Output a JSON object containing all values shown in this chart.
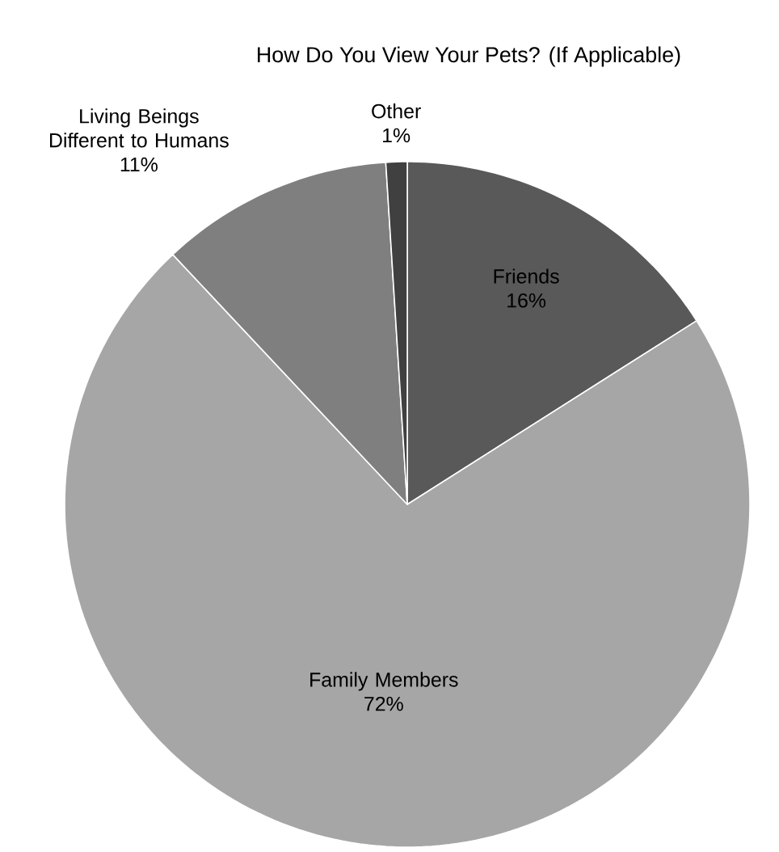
{
  "chart_data": {
    "type": "pie",
    "title": "How Do You View Your Pets? (If Applicable)",
    "categories": [
      "Friends",
      "Family Members",
      "Living Beings Different to Humans",
      "Other"
    ],
    "values": [
      16,
      72,
      11,
      1
    ],
    "value_labels": [
      "16%",
      "72%",
      "11%",
      "1%"
    ],
    "colors": [
      "#595959",
      "#a6a6a6",
      "#7f7f7f",
      "#404040"
    ]
  }
}
